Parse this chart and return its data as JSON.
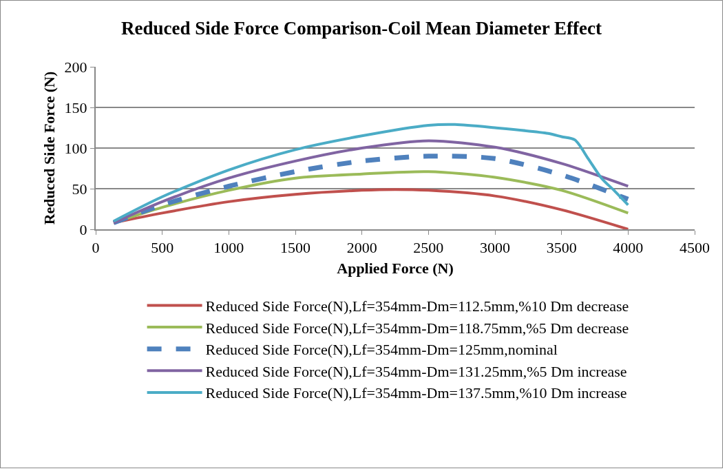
{
  "chart_data": {
    "type": "line",
    "title": "Reduced Side Force Comparison-Coil Mean Diameter Effect",
    "xlabel": "Applied Force (N)",
    "ylabel": "Reduced Side Force (N)",
    "xlim": [
      0,
      4500
    ],
    "xticks": [
      0,
      500,
      1000,
      1500,
      2000,
      2500,
      3000,
      3500,
      4000,
      4500
    ],
    "ylim": [
      0,
      200
    ],
    "yticks": [
      0,
      50,
      100,
      150,
      200
    ],
    "grid": "y",
    "legend": "bottom",
    "marker": "none",
    "series": [
      {
        "name": "Reduced Side Force(N),Lf=354mm-Dm=112.5mm,%10 Dm decrease",
        "color": "#c0504d",
        "x": [
          135,
          500,
          1000,
          1500,
          2000,
          2250,
          2500,
          3000,
          3500,
          4000
        ],
        "values": [
          8,
          20,
          34,
          43,
          48,
          49,
          48,
          41,
          24,
          0
        ]
      },
      {
        "name": "Reduced Side Force(N),Lf=354mm-Dm=118.75mm,%5 Dm decrease",
        "color": "#9bbb59",
        "x": [
          135,
          500,
          1000,
          1500,
          2000,
          2500,
          3000,
          3500,
          4000
        ],
        "values": [
          8,
          27,
          48,
          63,
          68,
          71,
          64,
          48,
          20
        ]
      },
      {
        "name": "Reduced Side Force(N),Lf=354mm-Dm=125mm,nominal",
        "color": "#4f81bd",
        "line_style": "dashed",
        "x": [
          135,
          500,
          1000,
          1500,
          2000,
          2500,
          3000,
          3500,
          4000
        ],
        "values": [
          8,
          30,
          53,
          71,
          84,
          90,
          87,
          67,
          37
        ]
      },
      {
        "name": "Reduced Side Force(N),Lf=354mm-Dm=131.25mm,%5 Dm increase",
        "color": "#8064a2",
        "x": [
          135,
          500,
          1000,
          1500,
          2000,
          2500,
          3000,
          3500,
          4000
        ],
        "values": [
          8,
          34,
          63,
          84,
          100,
          109,
          101,
          81,
          53
        ]
      },
      {
        "name": "Reduced Side Force(N),Lf=354mm-Dm=137.5mm,%10 Dm increase",
        "color": "#4bacc6",
        "x": [
          135,
          500,
          1000,
          1500,
          2000,
          2500,
          2700,
          3000,
          3400,
          3500,
          3600,
          3700,
          3800,
          3900,
          4000
        ],
        "values": [
          10,
          40,
          73,
          98,
          115,
          128,
          129,
          125,
          118,
          114,
          110,
          87,
          63,
          47,
          30
        ]
      }
    ]
  }
}
